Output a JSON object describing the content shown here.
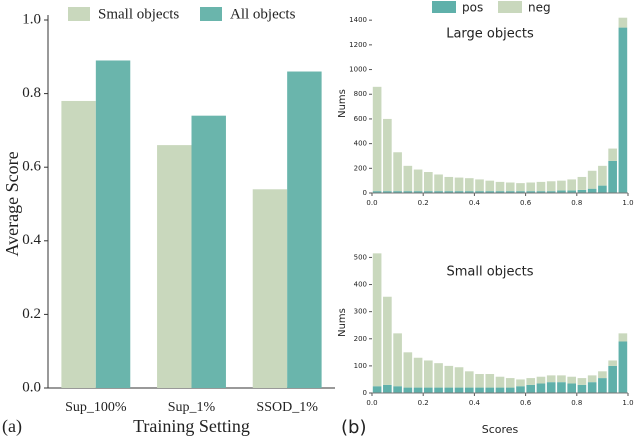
{
  "chart_data": [
    {
      "type": "bar",
      "panel_label": "(a)",
      "xlabel": "Training Setting",
      "ylabel": "Average Score",
      "categories": [
        "Sup_100%",
        "Sup_1%",
        "SSOD_1%"
      ],
      "series": [
        {
          "name": "Small objects",
          "color": "#c9d8bd",
          "values": [
            0.78,
            0.66,
            0.54
          ]
        },
        {
          "name": "All objects",
          "color": "#6ab5ac",
          "values": [
            0.89,
            0.74,
            0.86
          ]
        }
      ],
      "ylim": [
        0,
        1.0
      ],
      "yticks": [
        {
          "value": 0,
          "label": "0.0"
        },
        0.2,
        0.4,
        0.6,
        0.8,
        {
          "value": 1.0,
          "label": "1.0"
        }
      ]
    },
    {
      "type": "histogram",
      "title": "Large objects",
      "ylabel": "Nums",
      "bins": [
        0,
        0.04,
        0.08,
        0.12,
        0.16,
        0.2,
        0.24,
        0.28,
        0.32,
        0.36,
        0.4,
        0.44,
        0.48,
        0.52,
        0.56,
        0.6,
        0.64,
        0.68,
        0.72,
        0.76,
        0.8,
        0.84,
        0.88,
        0.92,
        0.96,
        1.0
      ],
      "series": [
        {
          "name": "pos",
          "color": "#5fb0aa",
          "values": [
            15,
            15,
            15,
            15,
            15,
            15,
            15,
            15,
            15,
            15,
            15,
            15,
            15,
            15,
            15,
            15,
            15,
            15,
            20,
            20,
            25,
            35,
            60,
            260,
            1340
          ]
        },
        {
          "name": "neg",
          "color": "#c9d8bd",
          "values": [
            845,
            585,
            315,
            205,
            175,
            155,
            135,
            115,
            110,
            105,
            95,
            85,
            75,
            70,
            65,
            70,
            75,
            80,
            80,
            90,
            105,
            145,
            160,
            100,
            80
          ]
        }
      ],
      "xlim": [
        0,
        1.0
      ],
      "xticks": [
        {
          "value": 0,
          "label": "0.0"
        },
        0.2,
        0.4,
        0.6,
        0.8,
        {
          "value": 1.0,
          "label": "1.0"
        }
      ],
      "ylim": [
        0,
        1450
      ],
      "yticks": [
        0,
        200,
        400,
        600,
        800,
        1000,
        1200,
        1400
      ]
    },
    {
      "type": "histogram",
      "panel_label": "(b)",
      "title": "Small objects",
      "ylabel": "Nums",
      "xlabel": "Scores",
      "bins": [
        0,
        0.04,
        0.08,
        0.12,
        0.16,
        0.2,
        0.24,
        0.28,
        0.32,
        0.36,
        0.4,
        0.44,
        0.48,
        0.52,
        0.56,
        0.6,
        0.64,
        0.68,
        0.72,
        0.76,
        0.8,
        0.84,
        0.88,
        0.92,
        0.96,
        1.0
      ],
      "series": [
        {
          "color": "#5fb0aa",
          "values": [
            25,
            30,
            25,
            20,
            20,
            20,
            20,
            20,
            20,
            20,
            20,
            20,
            20,
            20,
            25,
            30,
            35,
            40,
            40,
            35,
            30,
            40,
            55,
            100,
            190
          ]
        },
        {
          "color": "#c9d8bd",
          "values": [
            490,
            325,
            195,
            130,
            110,
            100,
            90,
            80,
            75,
            60,
            50,
            50,
            40,
            35,
            25,
            25,
            25,
            25,
            25,
            25,
            25,
            25,
            25,
            20,
            30
          ]
        }
      ],
      "xlim": [
        0,
        1.0
      ],
      "xticks": [
        {
          "value": 0,
          "label": "0.0"
        },
        0.2,
        0.4,
        0.6,
        0.8,
        {
          "value": 1.0,
          "label": "1.0"
        }
      ],
      "ylim": [
        0,
        520
      ],
      "yticks": [
        0,
        100,
        200,
        300,
        400,
        500
      ]
    }
  ]
}
